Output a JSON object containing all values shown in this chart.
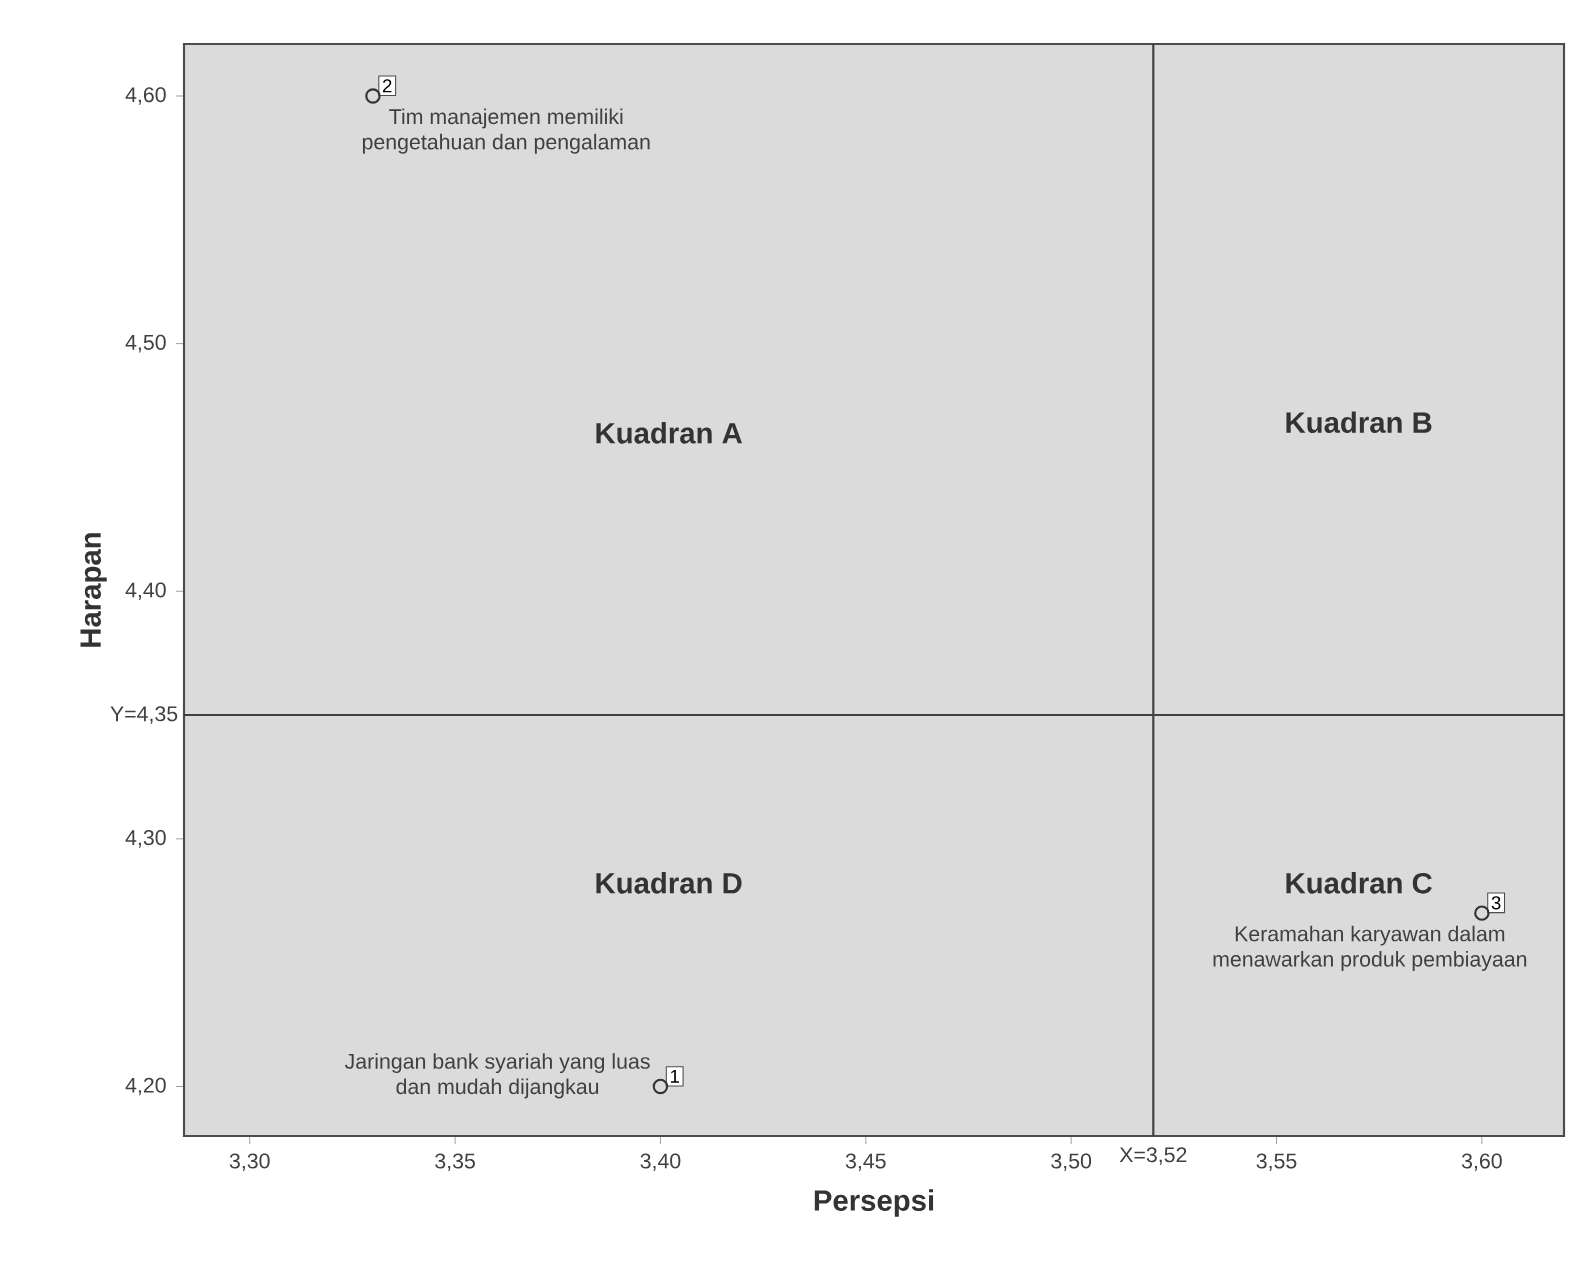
{
  "chart_data": {
    "type": "scatter",
    "xlabel": "Persepsi",
    "ylabel": "Harapan",
    "x": [
      3.4,
      3.33,
      3.6
    ],
    "series": [
      {
        "color": "#333333",
        "values": [
          4.2,
          4.6,
          4.27
        ]
      }
    ],
    "marker": "circle",
    "grid": false,
    "xlim": [
      3.284,
      3.62
    ],
    "ylim": [
      4.18,
      4.621
    ],
    "xticks": [
      {
        "value": 3.3,
        "label": "3,30"
      },
      {
        "value": 3.35,
        "label": "3,35"
      },
      {
        "value": 3.4,
        "label": "3,40"
      },
      {
        "value": 3.45,
        "label": "3,45"
      },
      {
        "value": 3.5,
        "label": "3,50"
      },
      {
        "value": 3.55,
        "label": "3,55"
      },
      {
        "value": 3.6,
        "label": "3,60"
      }
    ],
    "yticks": [
      {
        "value": 4.2,
        "label": "4,20"
      },
      {
        "value": 4.3,
        "label": "4,30"
      },
      {
        "value": 4.4,
        "label": "4,40"
      },
      {
        "value": 4.5,
        "label": "4,50"
      },
      {
        "value": 4.6,
        "label": "4,60"
      }
    ],
    "ref_lines": [
      {
        "axis": "x",
        "value": 3.52,
        "label": "X=3,52",
        "color": "#404040"
      },
      {
        "axis": "y",
        "value": 4.35,
        "label": "Y=4,35",
        "color": "#404040"
      }
    ],
    "annotations": [
      {
        "text": "1",
        "x": 3.4,
        "y": 4.2
      },
      {
        "text": "2",
        "x": 3.33,
        "y": 4.6
      },
      {
        "text": "3",
        "x": 3.6,
        "y": 4.27
      },
      {
        "text": "Jaringan bank syariah yang luas dan mudah dijangkau",
        "x": 3.4,
        "y": 4.2
      },
      {
        "text": "Tim manajemen memiliki pengetahuan dan pengalaman",
        "x": 3.33,
        "y": 4.6
      },
      {
        "text": "Keramahan karyawan dalam menawarkan produk pembiayaan",
        "x": 3.6,
        "y": 4.27
      },
      "Kuadran A",
      "Kuadran B",
      "Kuadran C",
      "Kuadran D"
    ]
  }
}
